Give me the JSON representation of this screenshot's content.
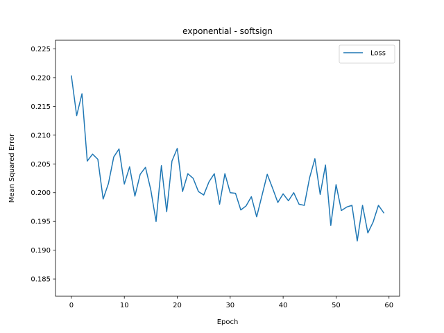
{
  "chart_data": {
    "type": "line",
    "title": "exponential - softsign",
    "xlabel": "Epoch",
    "ylabel": "Mean Squared Error",
    "xlim": [
      -3,
      62
    ],
    "ylim": [
      0.182,
      0.2265
    ],
    "xticks": [
      0,
      10,
      20,
      30,
      40,
      50,
      60
    ],
    "yticks": [
      0.185,
      0.19,
      0.195,
      0.2,
      0.205,
      0.21,
      0.215,
      0.22,
      0.225
    ],
    "ytick_labels": [
      "0.185",
      "0.190",
      "0.195",
      "0.200",
      "0.205",
      "0.210",
      "0.215",
      "0.220",
      "0.225"
    ],
    "legend_position": "top-right",
    "grid": false,
    "series": [
      {
        "name": "Loss",
        "color": "#1f77b4",
        "x": [
          0,
          1,
          2,
          3,
          4,
          5,
          6,
          7,
          8,
          9,
          10,
          11,
          12,
          13,
          14,
          15,
          16,
          17,
          18,
          19,
          20,
          21,
          22,
          23,
          24,
          25,
          26,
          27,
          28,
          29,
          30,
          31,
          32,
          33,
          34,
          35,
          36,
          37,
          38,
          39,
          40,
          41,
          42,
          43,
          44,
          45,
          46,
          47,
          48,
          49,
          50,
          51,
          52,
          53,
          54,
          55,
          56,
          57,
          58,
          59
        ],
        "values": [
          0.2203,
          0.2134,
          0.2172,
          0.2055,
          0.2067,
          0.2058,
          0.1989,
          0.2016,
          0.2062,
          0.2076,
          0.2015,
          0.2045,
          0.1994,
          0.2032,
          0.2044,
          0.2005,
          0.195,
          0.2047,
          0.1967,
          0.2055,
          0.2077,
          0.2002,
          0.2033,
          0.2025,
          0.2002,
          0.1996,
          0.2019,
          0.2033,
          0.198,
          0.2033,
          0.2,
          0.1999,
          0.197,
          0.1977,
          0.1993,
          0.1958,
          0.1995,
          0.2032,
          0.2008,
          0.1983,
          0.1998,
          0.1986,
          0.2,
          0.198,
          0.1978,
          0.2026,
          0.2059,
          0.1997,
          0.2048,
          0.1943,
          0.2014,
          0.1969,
          0.1975,
          0.1978,
          0.1916,
          0.1978,
          0.193,
          0.1949,
          0.1978,
          0.1965
        ]
      }
    ]
  }
}
